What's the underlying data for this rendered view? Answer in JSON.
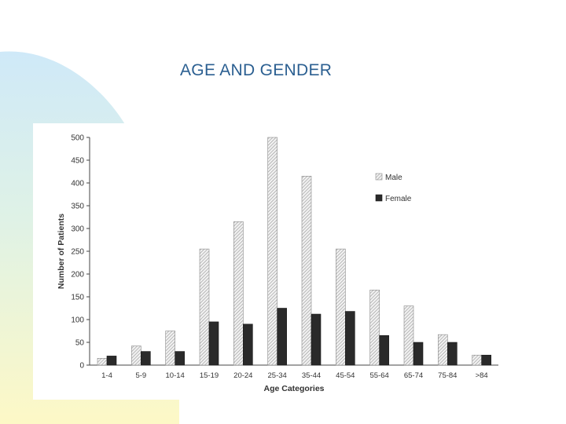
{
  "slide": {
    "title": "AGE AND GENDER"
  },
  "colors": {
    "title": "#2b5f91",
    "male_fill": "hatched-light-gray",
    "female_fill": "#2a2a2a",
    "background_gradient": [
      "#cde8f7",
      "#fdf8c8"
    ]
  },
  "chart_data": {
    "type": "bar",
    "title": "",
    "xlabel": "Age Categories",
    "ylabel": "Number of Patients",
    "ylim": [
      0,
      500
    ],
    "yticks": [
      0,
      50,
      100,
      150,
      200,
      250,
      300,
      350,
      400,
      450,
      500
    ],
    "grid": false,
    "legend_position": "top-right",
    "categories": [
      "1-4",
      "5-9",
      "10-14",
      "15-19",
      "20-24",
      "25-34",
      "35-44",
      "45-54",
      "55-64",
      "65-74",
      "75-84",
      ">84"
    ],
    "series": [
      {
        "name": "Male",
        "values": [
          15,
          42,
          75,
          255,
          315,
          500,
          415,
          255,
          165,
          130,
          67,
          22
        ]
      },
      {
        "name": "Female",
        "values": [
          20,
          30,
          30,
          95,
          90,
          125,
          112,
          118,
          65,
          50,
          50,
          22
        ]
      }
    ]
  }
}
